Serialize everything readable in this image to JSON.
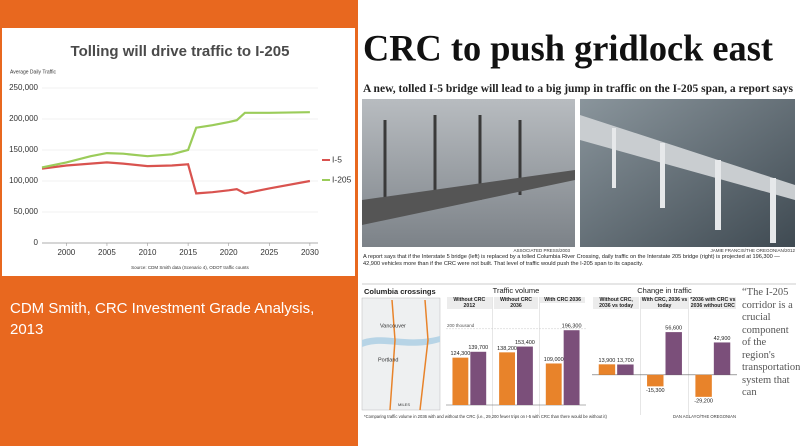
{
  "chart_data": [
    {
      "type": "line",
      "title": "Tolling will drive traffic to I-205",
      "y_label": "Average Daily Traffic",
      "source": "Source: CDM Smith data (Scenario 4), ODOT traffic counts",
      "x": [
        1997,
        2000,
        2003,
        2005,
        2007,
        2010,
        2013,
        2015,
        2016,
        2018,
        2020,
        2021,
        2022,
        2025,
        2030
      ],
      "series": [
        {
          "name": "I-5",
          "color": "#d9534f",
          "values": [
            120000,
            125000,
            128000,
            130000,
            128000,
            124000,
            125000,
            127000,
            80000,
            82000,
            85000,
            87000,
            80000,
            88000,
            100000
          ]
        },
        {
          "name": "I-205",
          "color": "#9bcc5a",
          "values": [
            122000,
            130000,
            140000,
            145000,
            144000,
            140000,
            143000,
            150000,
            186000,
            190000,
            195000,
            198000,
            210000,
            210000,
            211000
          ]
        }
      ],
      "xlim": [
        1997,
        2031
      ],
      "xticks": [
        2000,
        2005,
        2010,
        2015,
        2020,
        2025,
        2030
      ],
      "ylim": [
        0,
        250000
      ],
      "yticks": [
        {
          "value": 0,
          "label": "0"
        },
        {
          "value": 50000,
          "label": "50,000"
        },
        {
          "value": 100000,
          "label": "100,000"
        },
        {
          "value": 150000,
          "label": "150,000"
        },
        {
          "value": 200000,
          "label": "200,000"
        },
        {
          "value": 250000,
          "label": "250,000"
        }
      ],
      "grid": true,
      "legend": "right"
    },
    {
      "type": "bar",
      "title": "Traffic volume",
      "categories": [
        "Without CRC 2012",
        "Without CRC 2036",
        "With CRC 2036"
      ],
      "series": [
        {
          "name": "I-5",
          "color": "#e8832a",
          "values": [
            124300,
            138200,
            109000
          ],
          "value_labels": [
            "124,300",
            "138,200",
            "109,000"
          ]
        },
        {
          "name": "I-205",
          "color": "#7b4f7a",
          "values": [
            139700,
            153400,
            196300
          ],
          "value_labels": [
            "139,700",
            "153,400",
            "196,300"
          ]
        }
      ],
      "ylim": [
        0,
        210000
      ],
      "yticks": [
        {
          "value": 200000,
          "label": "200 thousand"
        }
      ],
      "grid": true
    },
    {
      "type": "bar",
      "title": "Change in traffic",
      "categories": [
        "Without CRC, 2036 vs today",
        "With CRC, 2036 vs today",
        "*2036 with CRC vs 2036 without CRC"
      ],
      "series": [
        {
          "name": "I-5",
          "color": "#e8832a",
          "values": [
            13900,
            -15300,
            -29200
          ],
          "value_labels": [
            "13,900",
            "-15,300",
            "-29,200"
          ]
        },
        {
          "name": "I-205",
          "color": "#7b4f7a",
          "values": [
            13700,
            56600,
            42900
          ],
          "value_labels": [
            "13,700",
            "56,600",
            "42,900"
          ]
        }
      ],
      "ylim": [
        -40000,
        70000
      ],
      "yticks": [],
      "grid": false
    }
  ],
  "slide_caption": "CDM Smith, CRC Investment Grade Analysis, 2013",
  "article": {
    "headline": "CRC to push gridlock east",
    "deck": "A new, tolled I-5 bridge will lead to a big jump in traffic on the I-205 span, a report says",
    "photo_credits": [
      "ASSOCIATED PRESS/2003",
      "JAMIE FRANCIS/THE OREGONIAN/2012"
    ],
    "caption": "A report says that if the Interstate 5 bridge (left) is replaced by a tolled Columbia River Crossing, daily traffic on the Interstate 205 bridge (right) is projected at 196,300 — 42,900 vehicles more than if the CRC were not built. That level of traffic would push the I-205 span to its capacity.",
    "map_title": "Columbia crossings",
    "map_labels": [
      "Vancouver",
      "Portland",
      "MILES"
    ],
    "footnote": "*Comparing traffic volume in 2036 with and without the CRC (i.e., 29,200 fewer trips on I-5 with CRC than there would be without it)",
    "graphic_credit": "DAN AGLAYO/THE OREGONIAN",
    "quote": "“The I-205 corridor is a crucial component of the region's transportation system that can"
  }
}
